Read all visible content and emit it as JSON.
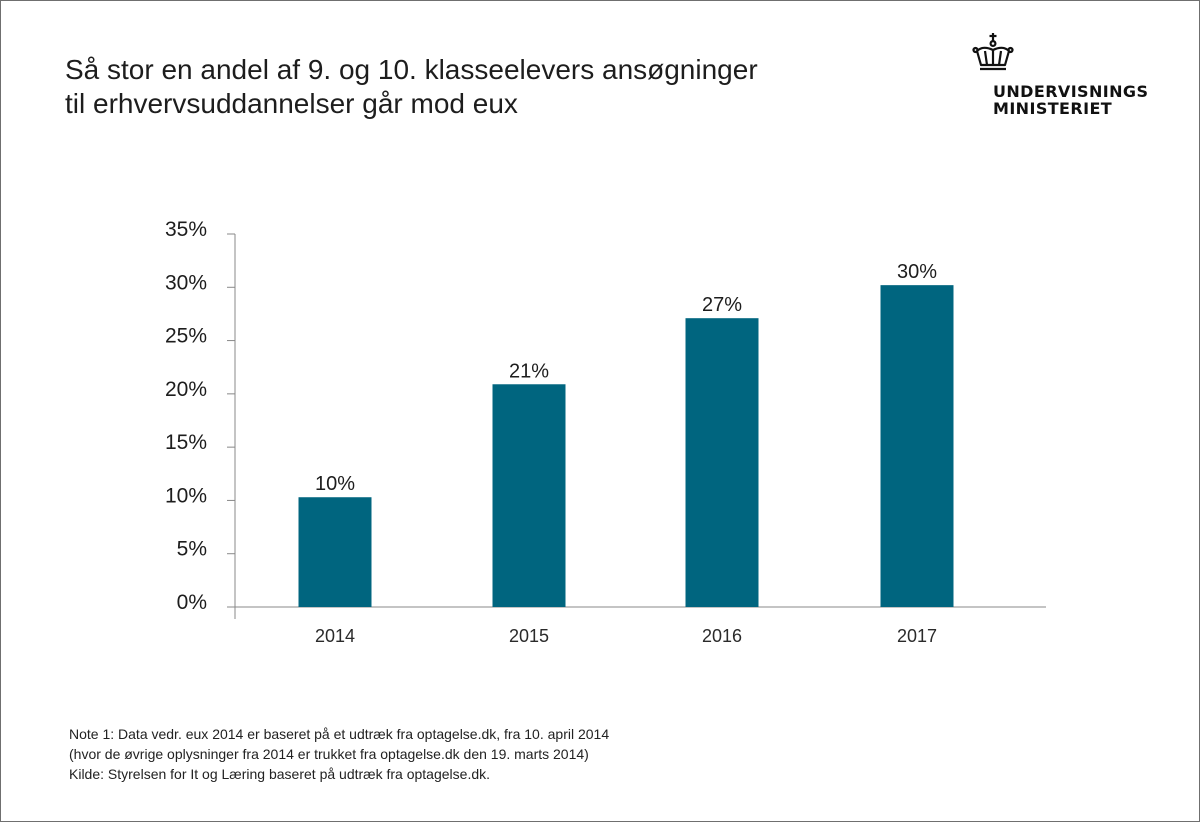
{
  "title_lines": [
    "Så stor en andel af 9. og 10. klasseelevers ansøgninger",
    "til erhvervsuddannelser går mod eux"
  ],
  "logo": {
    "icon": "crown-icon",
    "lines": [
      "UNDERVISNINGS",
      "MINISTERIET"
    ]
  },
  "colors": {
    "bar": "#00657f",
    "axis": "#888888"
  },
  "chart_data": {
    "type": "bar",
    "categories": [
      "2014",
      "2015",
      "2016",
      "2017"
    ],
    "values": [
      10.3,
      20.9,
      27.1,
      30.2
    ],
    "data_labels": [
      "10%",
      "21%",
      "27%",
      "30%"
    ],
    "ylim": [
      0,
      35
    ],
    "yticks": [
      0,
      5,
      10,
      15,
      20,
      25,
      30,
      35
    ],
    "ytick_labels": [
      "0%",
      "5%",
      "10%",
      "15%",
      "20%",
      "25%",
      "30%",
      "35%"
    ],
    "grid": false,
    "legend": "none"
  },
  "notes": [
    "Note 1: Data vedr. eux 2014 er baseret på et udtræk fra optagelse.dk, fra 10. april 2014",
    "(hvor de øvrige oplysninger fra 2014 er trukket fra optagelse.dk den 19. marts 2014)",
    "Kilde: Styrelsen for It og Læring baseret på udtræk fra optagelse.dk."
  ]
}
